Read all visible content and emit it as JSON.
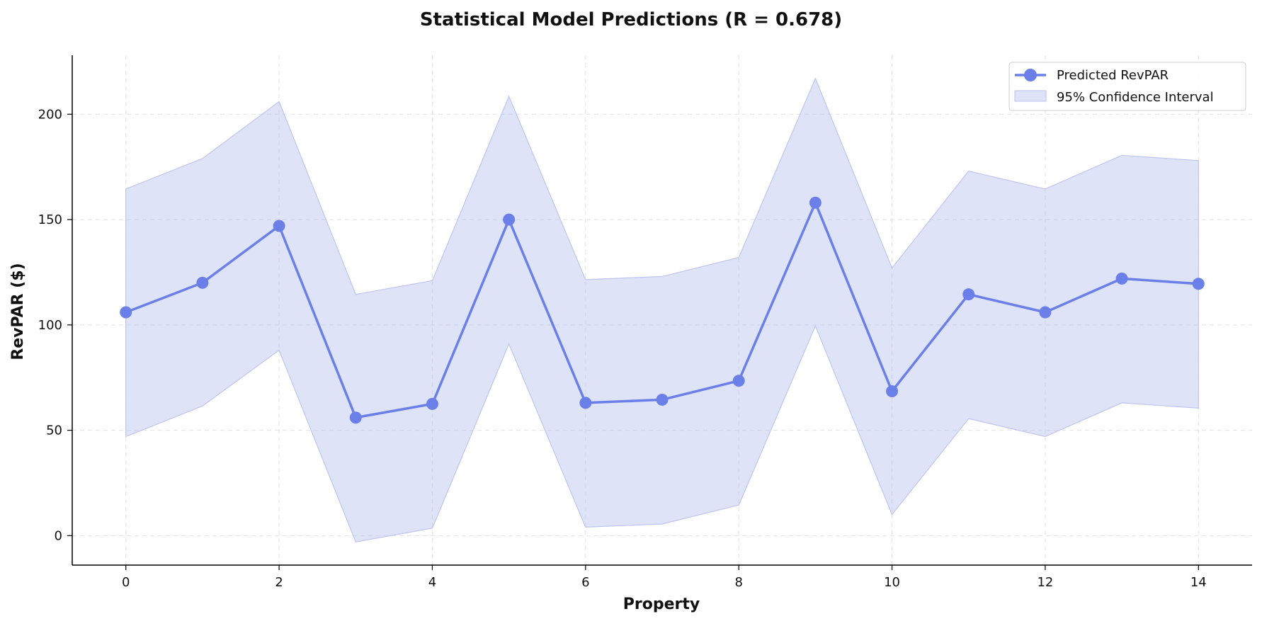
{
  "chart_data": {
    "type": "line",
    "title": "Statistical Model Predictions (R = 0.678)",
    "xlabel": "Property",
    "ylabel": "RevPAR ($)",
    "xlim": [
      -0.7,
      14.7
    ],
    "ylim": [
      -14,
      228
    ],
    "x_ticks": [
      0,
      2,
      4,
      6,
      8,
      10,
      12,
      14
    ],
    "y_ticks": [
      0,
      50,
      100,
      150,
      200
    ],
    "grid": true,
    "legend_position": "top-right",
    "x": [
      0,
      1,
      2,
      3,
      4,
      5,
      6,
      7,
      8,
      9,
      10,
      11,
      12,
      13,
      14
    ],
    "series": [
      {
        "name": "Predicted RevPAR",
        "kind": "line-markers",
        "color": "#6a7fe8",
        "values": [
          106,
          120,
          147,
          56,
          62.5,
          150,
          63,
          64.5,
          73.5,
          158,
          68.5,
          114.5,
          106,
          122,
          119.5
        ]
      },
      {
        "name": "95% Confidence Interval",
        "kind": "band",
        "color": "#b9c0f0",
        "lower": [
          47,
          61.5,
          88,
          -3,
          3.5,
          91,
          4,
          5.5,
          14.5,
          99.5,
          10,
          55.5,
          47,
          63,
          60.5
        ],
        "upper": [
          164.5,
          179,
          206,
          114.5,
          121,
          208.5,
          121.5,
          123,
          132,
          217,
          127,
          173,
          164.5,
          180.5,
          178
        ]
      }
    ]
  }
}
